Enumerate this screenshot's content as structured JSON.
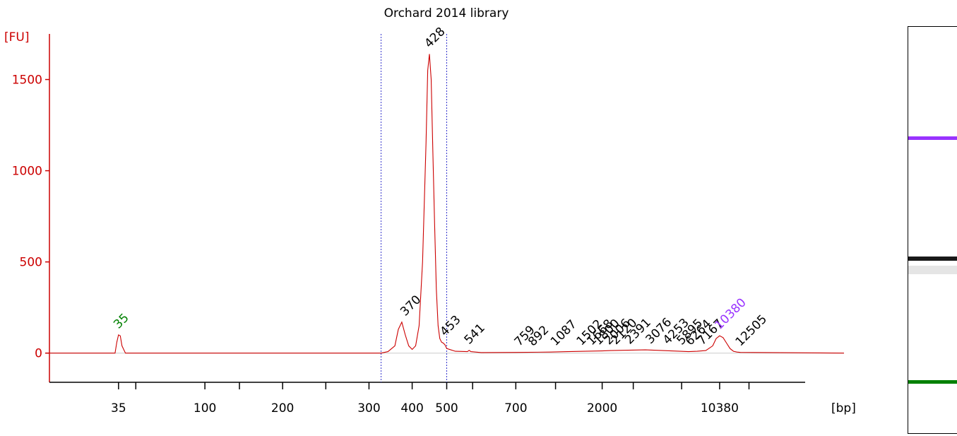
{
  "chart_data": {
    "type": "line",
    "title": "Orchard 2014 library",
    "ylabel": "[FU]",
    "xlabel": "[bp]",
    "ylim": [
      -160,
      1750
    ],
    "y_ticks": [
      0,
      500,
      1000,
      1500
    ],
    "y_tick_labels": [
      "0",
      "500",
      "1000",
      "1500"
    ],
    "x_ticks": [
      {
        "label": "35",
        "time": 35.0
      },
      {
        "label": "",
        "time": 36.0
      },
      {
        "label": "100",
        "time": 40.0
      },
      {
        "label": "",
        "time": 42.0
      },
      {
        "label": "200",
        "time": 44.5
      },
      {
        "label": "",
        "time": 47.0
      },
      {
        "label": "300",
        "time": 49.5
      },
      {
        "label": "400",
        "time": 52.0
      },
      {
        "label": "500",
        "time": 54.0
      },
      {
        "label": "",
        "time": 55.5
      },
      {
        "label": "700",
        "time": 58.0
      },
      {
        "label": "",
        "time": 60.3
      },
      {
        "label": "2000",
        "time": 63.0
      },
      {
        "label": "",
        "time": 64.8
      },
      {
        "label": "",
        "time": 67.6
      },
      {
        "label": "10380",
        "time": 69.8
      },
      {
        "label": "",
        "time": 71.5
      }
    ],
    "x_range": [
      31,
      77
    ],
    "region_markers": [
      50.2,
      54.0
    ],
    "series": [
      {
        "x": [
          31.0,
          34.8,
          34.9,
          35.0,
          35.1,
          35.2,
          35.4,
          50.2,
          50.6,
          51.0,
          51.2,
          51.4,
          51.6,
          51.8,
          52.0,
          52.2,
          52.4,
          52.6,
          52.8,
          52.9,
          53.0,
          53.1,
          53.2,
          53.3,
          53.4,
          53.5,
          53.6,
          53.7,
          53.8,
          53.9,
          54.0,
          54.5,
          55.2,
          55.3,
          55.4,
          56.0,
          58.0,
          60.0,
          61.0,
          62.0,
          63.0,
          63.5,
          64.0,
          64.5,
          65.0,
          65.5,
          66.0,
          66.5,
          67.0,
          67.5,
          68.0,
          68.5,
          69.0,
          69.4,
          69.6,
          69.8,
          70.0,
          70.2,
          70.4,
          70.6,
          70.8,
          71.0,
          77.0
        ],
        "y": [
          0,
          0,
          60,
          100,
          95,
          40,
          0,
          0,
          8,
          40,
          130,
          170,
          100,
          40,
          20,
          40,
          150,
          500,
          1150,
          1550,
          1640,
          1500,
          1100,
          700,
          350,
          150,
          80,
          60,
          55,
          45,
          25,
          10,
          8,
          15,
          8,
          3,
          4,
          6,
          8,
          10,
          12,
          14,
          15,
          16,
          17,
          18,
          16,
          14,
          12,
          10,
          8,
          10,
          14,
          40,
          80,
          95,
          85,
          55,
          25,
          10,
          6,
          4,
          0
        ]
      }
    ],
    "peak_labels": [
      {
        "label": "35",
        "x": 35.0,
        "y": 100,
        "color": "#008000"
      },
      {
        "label": "370",
        "x": 51.6,
        "y": 170,
        "color": "#000000"
      },
      {
        "label": "428",
        "x": 53.0,
        "y": 1640,
        "color": "#000000"
      },
      {
        "label": "453",
        "x": 53.9,
        "y": 60,
        "color": "#000000"
      },
      {
        "label": "541",
        "x": 55.3,
        "y": 15,
        "color": "#000000"
      },
      {
        "label": "759",
        "x": 58.2,
        "y": 4,
        "color": "#000000"
      },
      {
        "label": "892",
        "x": 59.0,
        "y": 4,
        "color": "#000000"
      },
      {
        "label": "1087",
        "x": 60.3,
        "y": 6,
        "color": "#000000"
      },
      {
        "label": "1502",
        "x": 61.8,
        "y": 8,
        "color": "#000000"
      },
      {
        "label": "1668",
        "x": 62.4,
        "y": 9,
        "color": "#000000"
      },
      {
        "label": "1800",
        "x": 62.8,
        "y": 10,
        "color": "#000000"
      },
      {
        "label": "2006",
        "x": 63.4,
        "y": 12,
        "color": "#000000"
      },
      {
        "label": "2120",
        "x": 63.8,
        "y": 13,
        "color": "#000000"
      },
      {
        "label": "2391",
        "x": 64.6,
        "y": 15,
        "color": "#000000"
      },
      {
        "label": "3076",
        "x": 65.8,
        "y": 17,
        "color": "#000000"
      },
      {
        "label": "4253",
        "x": 66.8,
        "y": 14,
        "color": "#000000"
      },
      {
        "label": "5895",
        "x": 67.6,
        "y": 11,
        "color": "#000000"
      },
      {
        "label": "6264",
        "x": 68.1,
        "y": 8,
        "color": "#000000"
      },
      {
        "label": "7167",
        "x": 68.8,
        "y": 10,
        "color": "#000000"
      },
      {
        "label": "10380",
        "x": 69.8,
        "y": 95,
        "color": "#9933ff"
      },
      {
        "label": "12505",
        "x": 71.0,
        "y": 4,
        "color": "#000000"
      }
    ],
    "colors": {
      "axis": "#cc0000",
      "trace": "#cc0000",
      "marker_line": "#3333cc",
      "lower_marker": "#008000",
      "upper_marker": "#9933ff"
    },
    "grid": false,
    "legend": "none"
  },
  "gel": {
    "bands": [
      {
        "name": "upper-marker",
        "color": "#9933ff",
        "intensity": 1.0
      },
      {
        "name": "library-main",
        "color": "#000000",
        "intensity": 0.9
      },
      {
        "name": "lower-marker",
        "color": "#008000",
        "intensity": 1.0
      }
    ]
  }
}
